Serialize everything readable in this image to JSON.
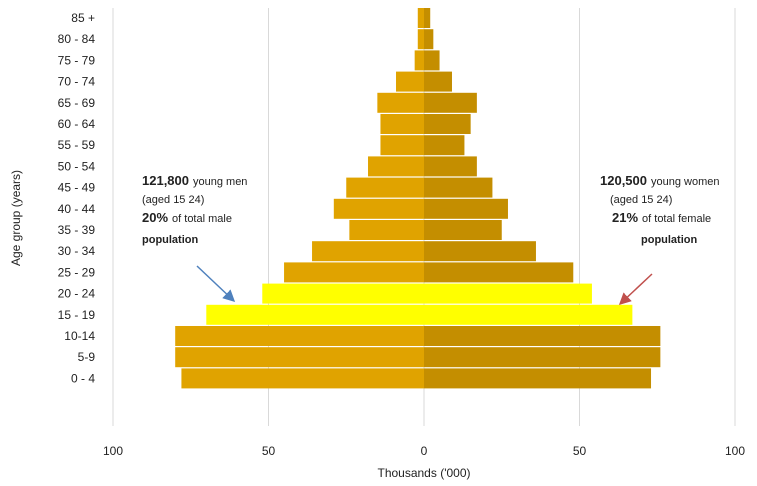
{
  "chart_data": {
    "type": "bar",
    "orientation": "horizontal-population-pyramid",
    "xlabel": "Thousands ('000)",
    "ylabel": "Age group (years)",
    "xlim": [
      -100,
      100
    ],
    "x_ticks": [
      {
        "value": -100,
        "label": "100"
      },
      {
        "value": -50,
        "label": "50"
      },
      {
        "value": 0,
        "label": "0"
      },
      {
        "value": 50,
        "label": "50"
      },
      {
        "value": 100,
        "label": "100"
      }
    ],
    "grid": "vertical",
    "categories": [
      "85 +",
      "80 - 84",
      "75 - 79",
      "70 - 74",
      "65 - 69",
      "60 - 64",
      "55 - 59",
      "50 - 54",
      "45 - 49",
      "40 - 44",
      "35 - 39",
      "30 - 34",
      "25 - 29",
      "20 - 24",
      "15 - 19",
      "10-14",
      "5-9",
      "0 - 4"
    ],
    "highlighted_categories": [
      "20 - 24",
      "15 - 19"
    ],
    "series": [
      {
        "side": "left",
        "color": "#e0a300",
        "values": [
          2,
          2,
          3,
          9,
          15,
          14,
          14,
          18,
          25,
          29,
          24,
          36,
          45,
          52,
          70,
          80,
          80,
          78
        ]
      },
      {
        "side": "right",
        "color": "#c48e00",
        "values": [
          2,
          3,
          5,
          9,
          17,
          15,
          13,
          17,
          22,
          27,
          25,
          36,
          48,
          54,
          67,
          76,
          76,
          73
        ]
      }
    ],
    "highlight_color": "#ffff00",
    "annotations": {
      "left": {
        "value": "121,800",
        "label": "young men",
        "sub": "(aged 15 24)",
        "pct": "20%",
        "pct_text": "of total male",
        "pct_text2": "population"
      },
      "right": {
        "value": "120,500",
        "label": "young women",
        "sub": "(aged 15 24)",
        "pct": "21%",
        "pct_text": "of total female",
        "pct_text2": "population"
      }
    },
    "arrow_colors": {
      "left": "#4f81bd",
      "right": "#c0504d"
    }
  }
}
